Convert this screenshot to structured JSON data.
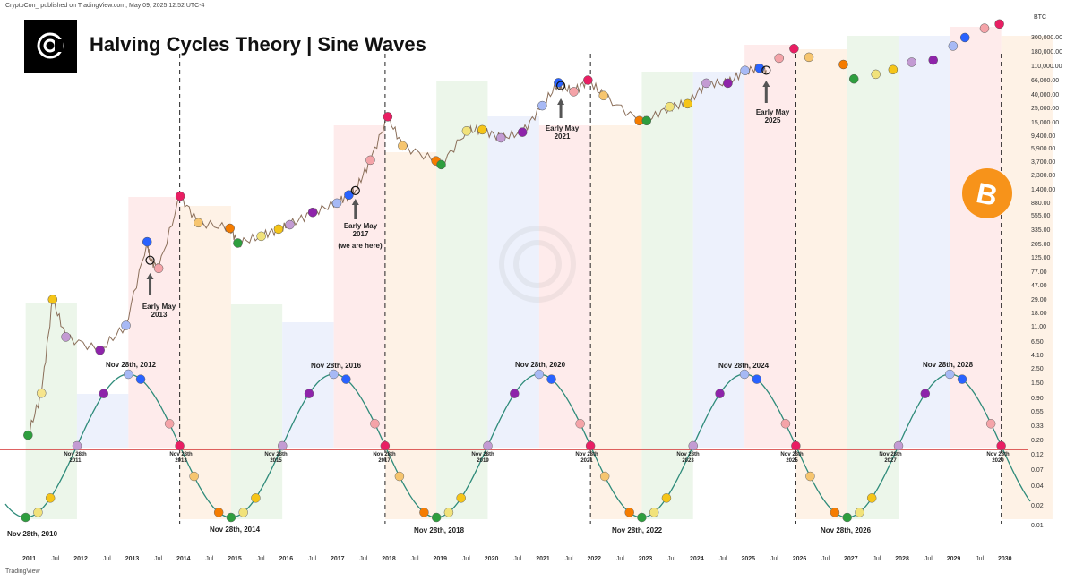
{
  "header": {
    "published": "CryptoCon_ published on TradingView.com, May 09, 2025 12:52 UTC-4",
    "title": "Halving Cycles Theory | Sine Waves",
    "footer": "TradingView"
  },
  "colors": {
    "sine": "#2e8b7a",
    "baseline": "#d32f2f",
    "price": "#8b6f5a",
    "btc_orange": "#f7931a",
    "logo_bg": "#000000"
  },
  "chart_data": {
    "type": "line",
    "title": "Halving Cycles Theory | Sine Waves",
    "y_scale": "log",
    "y_unit": "BTC",
    "y_ticks": [
      "300,000.00",
      "180,000.00",
      "110,000.00",
      "66,000.00",
      "40,000.00",
      "25,000.00",
      "15,000.00",
      "9,400.00",
      "5,900.00",
      "3,700.00",
      "2,300.00",
      "1,400.00",
      "880.00",
      "555.00",
      "335.00",
      "205.00",
      "125.00",
      "77.00",
      "47.00",
      "29.00",
      "18.00",
      "11.00",
      "6.50",
      "4.10",
      "2.50",
      "1.50",
      "0.90",
      "0.55",
      "0.33",
      "0.20",
      "0.12",
      "0.07",
      "0.04",
      "0.02",
      "0.01"
    ],
    "x_ticks": [
      "2011",
      "Jul",
      "2012",
      "Jul",
      "2013",
      "Jul",
      "2014",
      "Jul",
      "2015",
      "Jul",
      "2016",
      "Jul",
      "2017",
      "Jul",
      "2018",
      "Jul",
      "2019",
      "Jul",
      "2020",
      "Jul",
      "2021",
      "Jul",
      "2022",
      "Jul",
      "2023",
      "Jul",
      "2024",
      "Jul",
      "2025",
      "Jul",
      "2026",
      "Jul",
      "2027",
      "Jul",
      "2028",
      "Jul",
      "2029",
      "Jul",
      "2030"
    ],
    "annotations": {
      "early_may": [
        {
          "text": "Early May\n2013"
        },
        {
          "text": "Early May\n2017"
        },
        {
          "text": "(we are here)"
        },
        {
          "text": "Early May\n2021"
        },
        {
          "text": "Early May\n2025"
        }
      ],
      "tops": [
        "Nov 28th, 2012",
        "Nov 28th, 2016",
        "Nov 28th, 2020",
        "Nov 28th, 2024",
        "Nov 28th, 2028"
      ],
      "bottoms": [
        "Nov 28th, 2010",
        "Nov 28th, 2014",
        "Nov 28th, 2018",
        "Nov 28th, 2022",
        "Nov 28th, 2026"
      ],
      "crossings": [
        "Nov 28th\n2011",
        "Nov 28th\n2013",
        "Nov 28th\n2015",
        "Nov 28th\n2017",
        "Nov 28th\n2019",
        "Nov 28th\n2021",
        "Nov 28th\n2023",
        "Nov 28th\n2025",
        "Nov 28th\n2027",
        "Nov 28th\n2029"
      ]
    },
    "phase_colors": [
      "#2e9e3e",
      "#f5c518",
      "#f1e27a",
      "#c39bd3",
      "#8e24aa",
      "#a7b9f5",
      "#2962ff",
      "#f4a3a8",
      "#e91e63",
      "#f6c56f",
      "#f57c00"
    ],
    "price_markers": [
      {
        "date": "2010-12-15",
        "price": 0.25,
        "color": "#2e9e3e"
      },
      {
        "date": "2011-03-20",
        "price": 1.1,
        "color": "#f6e58d"
      },
      {
        "date": "2011-06-08",
        "price": 30,
        "color": "#f5c518"
      },
      {
        "date": "2011-09-10",
        "price": 8,
        "color": "#c39bd3"
      },
      {
        "date": "2012-05-10",
        "price": 5,
        "color": "#8e24aa"
      },
      {
        "date": "2012-11-10",
        "price": 12,
        "color": "#a7b9f5"
      },
      {
        "date": "2013-04-10",
        "price": 230,
        "color": "#2962ff"
      },
      {
        "date": "2013-05-01",
        "price": 120,
        "color": "#ffffff"
      },
      {
        "date": "2013-07-01",
        "price": 90,
        "color": "#f4a3a8"
      },
      {
        "date": "2013-12-01",
        "price": 1150,
        "color": "#e91e63"
      },
      {
        "date": "2014-04-10",
        "price": 450,
        "color": "#f6c56f"
      },
      {
        "date": "2014-11-20",
        "price": 370,
        "color": "#f57c00"
      },
      {
        "date": "2015-01-15",
        "price": 220,
        "color": "#2e9e3e"
      },
      {
        "date": "2015-07-01",
        "price": 280,
        "color": "#f1e27a"
      },
      {
        "date": "2015-11-01",
        "price": 360,
        "color": "#f5c518"
      },
      {
        "date": "2016-01-20",
        "price": 420,
        "color": "#c39bd3"
      },
      {
        "date": "2016-07-01",
        "price": 650,
        "color": "#8e24aa"
      },
      {
        "date": "2016-12-20",
        "price": 900,
        "color": "#a7b9f5"
      },
      {
        "date": "2017-03-15",
        "price": 1200,
        "color": "#2962ff"
      },
      {
        "date": "2017-05-01",
        "price": 1400,
        "color": "#ffffff"
      },
      {
        "date": "2017-08-15",
        "price": 4100,
        "color": "#f4a3a8"
      },
      {
        "date": "2017-12-17",
        "price": 19000,
        "color": "#e91e63"
      },
      {
        "date": "2018-04-01",
        "price": 6800,
        "color": "#f6c56f"
      },
      {
        "date": "2018-11-25",
        "price": 4000,
        "color": "#f57c00"
      },
      {
        "date": "2019-01-01",
        "price": 3500,
        "color": "#2e9e3e"
      },
      {
        "date": "2019-07-01",
        "price": 11500,
        "color": "#f1e27a"
      },
      {
        "date": "2019-10-20",
        "price": 12000,
        "color": "#f5c518"
      },
      {
        "date": "2020-03-01",
        "price": 9000,
        "color": "#c39bd3"
      },
      {
        "date": "2020-08-01",
        "price": 11000,
        "color": "#8e24aa"
      },
      {
        "date": "2020-12-20",
        "price": 28000,
        "color": "#a7b9f5"
      },
      {
        "date": "2021-04-14",
        "price": 63000,
        "color": "#2962ff"
      },
      {
        "date": "2021-05-01",
        "price": 57000,
        "color": "#ffffff"
      },
      {
        "date": "2021-08-01",
        "price": 46000,
        "color": "#f4a3a8"
      },
      {
        "date": "2021-11-10",
        "price": 69000,
        "color": "#e91e63"
      },
      {
        "date": "2022-03-01",
        "price": 40000,
        "color": "#f6c56f"
      },
      {
        "date": "2022-11-10",
        "price": 16500,
        "color": "#f57c00"
      },
      {
        "date": "2023-01-01",
        "price": 16500,
        "color": "#2e9e3e"
      },
      {
        "date": "2023-06-15",
        "price": 27000,
        "color": "#f1e27a"
      },
      {
        "date": "2023-10-20",
        "price": 30000,
        "color": "#f5c518"
      },
      {
        "date": "2024-03-01",
        "price": 62000,
        "color": "#c39bd3"
      },
      {
        "date": "2024-08-01",
        "price": 62000,
        "color": "#8e24aa"
      },
      {
        "date": "2024-12-01",
        "price": 97000,
        "color": "#a7b9f5"
      },
      {
        "date": "2025-03-15",
        "price": 105000,
        "color": "#2962ff"
      },
      {
        "date": "2025-05-01",
        "price": 98000,
        "color": "#ffffff"
      },
      {
        "date": "2025-08-01",
        "price": 150000,
        "color": "#f4a3a8"
      },
      {
        "date": "2025-11-15",
        "price": 210000,
        "color": "#e91e63"
      },
      {
        "date": "2026-03-01",
        "price": 155000,
        "color": "#f6c56f"
      },
      {
        "date": "2026-11-01",
        "price": 120000,
        "color": "#f57c00"
      },
      {
        "date": "2027-01-15",
        "price": 72000,
        "color": "#2e9e3e"
      },
      {
        "date": "2027-06-20",
        "price": 85000,
        "color": "#f1e27a"
      },
      {
        "date": "2027-10-20",
        "price": 100000,
        "color": "#f5c518"
      },
      {
        "date": "2028-03-01",
        "price": 130000,
        "color": "#c39bd3"
      },
      {
        "date": "2028-08-01",
        "price": 140000,
        "color": "#8e24aa"
      },
      {
        "date": "2028-12-20",
        "price": 230000,
        "color": "#a7b9f5"
      },
      {
        "date": "2029-03-15",
        "price": 310000,
        "color": "#2962ff"
      },
      {
        "date": "2029-08-01",
        "price": 430000,
        "color": "#f4a3a8"
      },
      {
        "date": "2029-11-15",
        "price": 500000,
        "color": "#e91e63"
      }
    ]
  }
}
